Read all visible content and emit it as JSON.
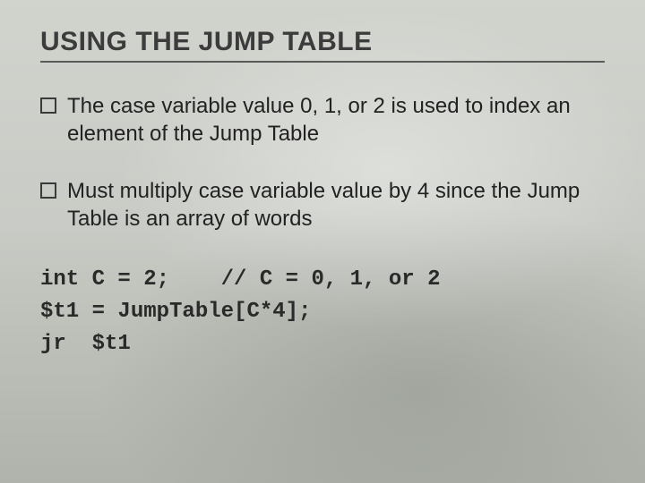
{
  "slide": {
    "title": "USING THE JUMP TABLE",
    "title_fontsize": 30,
    "title_color": "#3c3c3c",
    "title_underline_color": "#5a5a5a",
    "body_fontsize": 24,
    "body_color": "#222222",
    "code_fontsize": 24,
    "bullet_box": {
      "size": 14,
      "border_width": 2,
      "border_color": "#3a3a3a"
    },
    "bullets": [
      "The case variable value 0, 1, or 2 is used to index an element of the Jump Table",
      "Must multiply case variable value by 4 since the Jump Table is an array of words"
    ],
    "code": "int C = 2;    // C = 0, 1, or 2\n$t1 = JumpTable[C*4];\njr  $t1",
    "background": {
      "gradient_top": "#d1d3cd",
      "gradient_mid": "#c9ccc6",
      "gradient_low": "#bcc0b8",
      "gradient_bottom": "#afb3ab",
      "highlight": "rgba(255,255,255,0.35)",
      "shade": "rgba(120,125,118,0.35)"
    }
  }
}
